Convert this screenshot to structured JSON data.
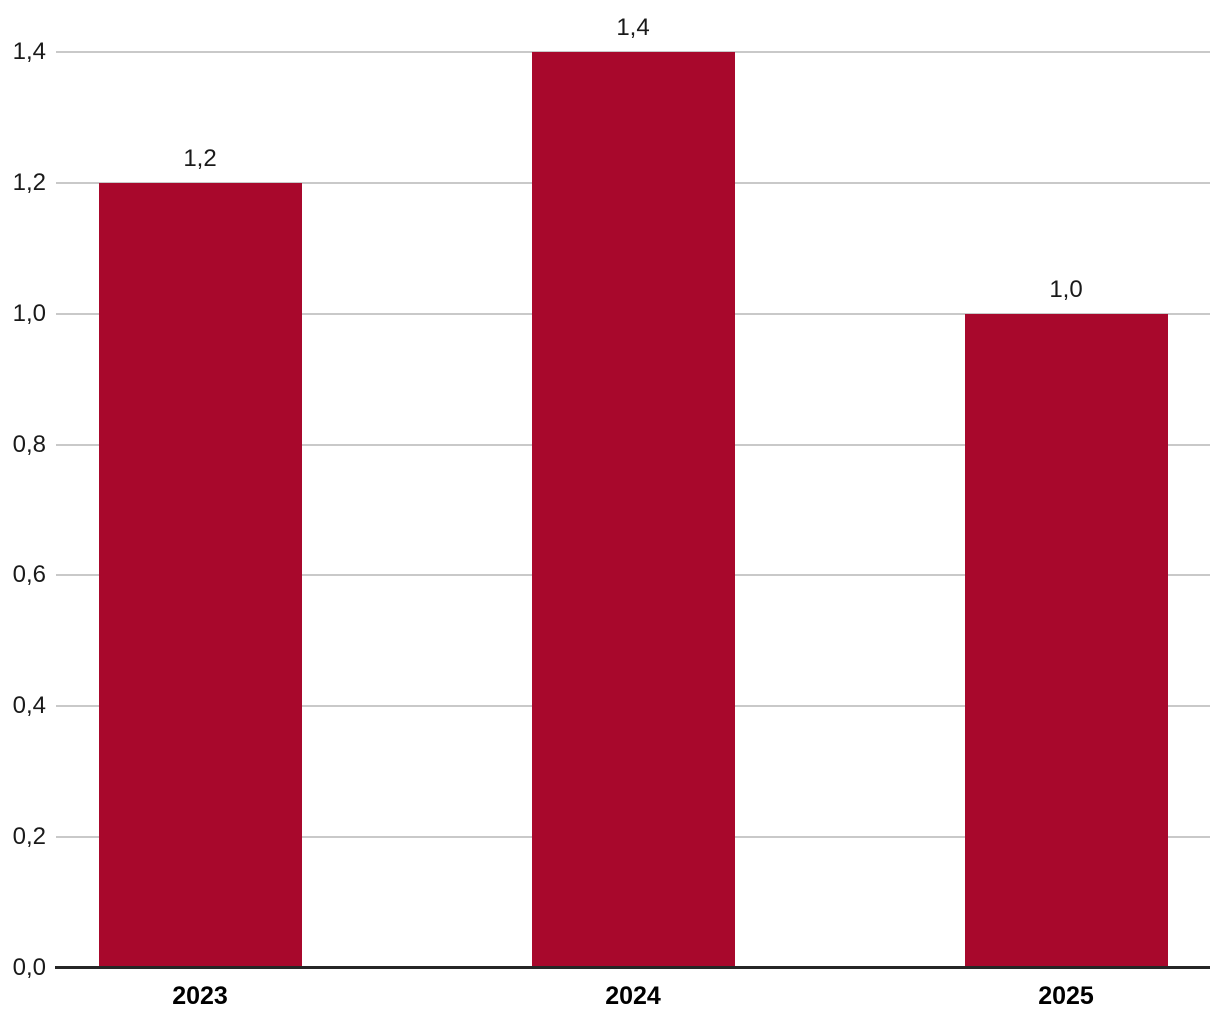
{
  "chart_data": {
    "type": "bar",
    "categories": [
      "2023",
      "2024",
      "2025"
    ],
    "values": [
      1.2,
      1.4,
      1.0
    ],
    "value_labels": [
      "1,2",
      "1,4",
      "1,0"
    ],
    "title": "",
    "xlabel": "",
    "ylabel": "",
    "ylim": [
      0,
      1.4
    ],
    "yticks": [
      0,
      0.2,
      0.4,
      0.6,
      0.8,
      1.0,
      1.2,
      1.4
    ],
    "ytick_labels": [
      "0,0",
      "0,2",
      "0,4",
      "0,6",
      "0,8",
      "1,0",
      "1,2",
      "1,4"
    ],
    "decimal_separator": ",",
    "grid": true,
    "legend": "none",
    "colors": {
      "bar": "#a8082c",
      "gridline": "#c9c9c9",
      "axis_line": "#262626",
      "tick_text": "#1a1a1a",
      "category_text": "#000000",
      "background": "#ffffff"
    }
  }
}
